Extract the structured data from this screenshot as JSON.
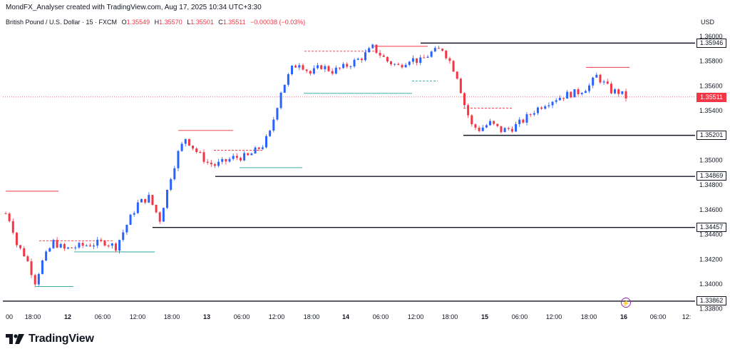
{
  "header": {
    "attribution": "MondFX_Analyser created with TradingView.com, Aug 17, 2025 10:34 UTC+3:30"
  },
  "symbol": {
    "name": "British Pound / U.S. Dollar · 15 · FXCM",
    "open_label": "O",
    "open": "1.35549",
    "high_label": "H",
    "high": "1.35570",
    "low_label": "L",
    "low": "1.35501",
    "close_label": "C",
    "close": "1.35511",
    "change": "−0.00038 (−0.03%)"
  },
  "currency": "USD",
  "last_price": "1.35511",
  "brand": {
    "name": "TradingView"
  },
  "colors": {
    "up": "#2962ff",
    "down": "#f23645",
    "resistance": "#f23645",
    "support": "#26a69a",
    "level": "#131722"
  },
  "chart_data": {
    "type": "candlestick",
    "instrument": "GBPUSD",
    "timeframe": "15",
    "ylim": [
      1.338,
      1.3606
    ],
    "y_ticks": [
      "1.36000",
      "1.35800",
      "1.35600",
      "1.35400",
      "1.35200",
      "1.35000",
      "1.34800",
      "1.34600",
      "1.34400",
      "1.34200",
      "1.34000",
      "1.33800"
    ],
    "x_ticks": [
      "00",
      "18:00",
      "12",
      "06:00",
      "12:00",
      "18:00",
      "13",
      "06:00",
      "12:00",
      "18:00",
      "14",
      "06:00",
      "12:00",
      "18:00",
      "15",
      "06:00",
      "12:00",
      "18:00",
      "16",
      "06:00",
      "12:"
    ],
    "key_levels": [
      "1.35946",
      "1.35201",
      "1.34869",
      "1.34457",
      "1.33862"
    ],
    "close_path": [
      [
        0,
        1.3457
      ],
      [
        1.5,
        1.345
      ],
      [
        3,
        1.3432
      ],
      [
        5.5,
        1.3422
      ],
      [
        8,
        1.3402
      ],
      [
        10,
        1.3418
      ],
      [
        13,
        1.3434
      ],
      [
        16,
        1.3428
      ],
      [
        19,
        1.343
      ],
      [
        23,
        1.3432
      ],
      [
        27,
        1.3434
      ],
      [
        30,
        1.343
      ],
      [
        33,
        1.3448
      ],
      [
        36,
        1.3465
      ],
      [
        39,
        1.347
      ],
      [
        42,
        1.3452
      ],
      [
        45,
        1.3487
      ],
      [
        47,
        1.3506
      ],
      [
        49,
        1.3518
      ],
      [
        52,
        1.3507
      ],
      [
        55,
        1.3498
      ],
      [
        57,
        1.3496
      ],
      [
        59,
        1.3498
      ],
      [
        62,
        1.3502
      ],
      [
        66,
        1.3503
      ],
      [
        70,
        1.3512
      ],
      [
        72,
        1.3522
      ],
      [
        75,
        1.3556
      ],
      [
        78,
        1.3574
      ],
      [
        80,
        1.3579
      ],
      [
        83,
        1.357
      ],
      [
        86,
        1.3576
      ],
      [
        89,
        1.3572
      ],
      [
        92,
        1.3575
      ],
      [
        94,
        1.3578
      ],
      [
        97,
        1.3583
      ],
      [
        100,
        1.3591
      ],
      [
        104,
        1.358
      ],
      [
        107,
        1.3576
      ],
      [
        110,
        1.3582
      ],
      [
        113,
        1.358
      ],
      [
        116,
        1.3587
      ],
      [
        119,
        1.359
      ],
      [
        121,
        1.358
      ],
      [
        123,
        1.3568
      ],
      [
        125,
        1.3545
      ],
      [
        127,
        1.3528
      ],
      [
        129,
        1.3525
      ],
      [
        132,
        1.353
      ],
      [
        135,
        1.3524
      ],
      [
        138,
        1.3526
      ],
      [
        141,
        1.3532
      ],
      [
        144,
        1.354
      ],
      [
        147,
        1.3546
      ],
      [
        150,
        1.355
      ],
      [
        153,
        1.3553
      ],
      [
        156,
        1.3555
      ],
      [
        159,
        1.356
      ],
      [
        161,
        1.3568
      ],
      [
        163,
        1.3562
      ],
      [
        165,
        1.3556
      ],
      [
        167,
        1.3555
      ],
      [
        169,
        1.3551
      ]
    ]
  }
}
